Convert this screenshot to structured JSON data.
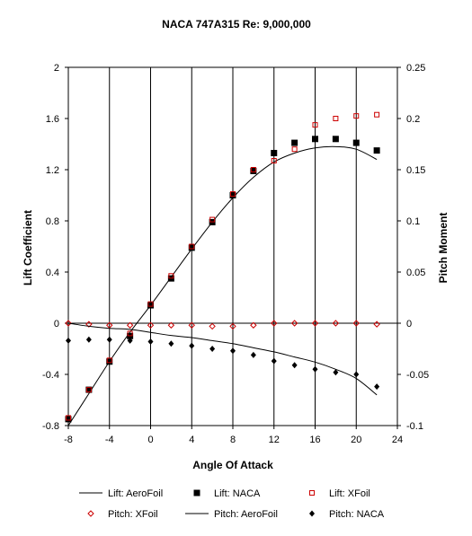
{
  "chart_data": {
    "type": "scatter",
    "title": "NACA 747A315 Re: 9,000,000",
    "xlabel": "Angle Of Attack",
    "ylabel": "Lift Coefficient",
    "y2label": "Pitch Moment",
    "xlim": [
      -8,
      24
    ],
    "ylim": [
      -0.8,
      2
    ],
    "y2lim": [
      -0.1,
      0.25
    ],
    "xticks": [
      "-8",
      "-4",
      "0",
      "4",
      "8",
      "12",
      "16",
      "20",
      "24"
    ],
    "yticks": [
      "-0.8",
      "-0.4",
      "0",
      "0.4",
      "0.8",
      "1.2",
      "1.6",
      "2"
    ],
    "y2ticks": [
      "-0.1",
      "-0.05",
      "0",
      "0.05",
      "0.1",
      "0.15",
      "0.2",
      "0.25"
    ],
    "grid": "vertical",
    "legend_position": "bottom",
    "series": [
      {
        "name": "Lift: AeroFoil",
        "axis": "left",
        "style": "line",
        "color": "#000000",
        "x": [
          -8,
          -6,
          -4,
          -2,
          0,
          2,
          4,
          6,
          8,
          10,
          12,
          14,
          16,
          18,
          20,
          22
        ],
        "y": [
          -0.8,
          -0.55,
          -0.3,
          -0.07,
          0.14,
          0.36,
          0.58,
          0.79,
          0.98,
          1.14,
          1.26,
          1.33,
          1.37,
          1.38,
          1.36,
          1.28
        ]
      },
      {
        "name": "Lift: NACA",
        "axis": "left",
        "style": "filled-square",
        "color": "#000000",
        "x": [
          -8,
          -6,
          -4,
          -2,
          0,
          2,
          4,
          6,
          8,
          10,
          12,
          14,
          16,
          18,
          20,
          22
        ],
        "y": [
          -0.75,
          -0.52,
          -0.3,
          -0.1,
          0.14,
          0.35,
          0.59,
          0.79,
          1.0,
          1.19,
          1.33,
          1.41,
          1.44,
          1.44,
          1.41,
          1.35
        ]
      },
      {
        "name": "Lift: XFoil",
        "axis": "left",
        "style": "open-square",
        "color": "#cc0000",
        "x": [
          -8,
          -6,
          -4,
          -2,
          0,
          2,
          4,
          6,
          8,
          10,
          12,
          14,
          16,
          18,
          20,
          22
        ],
        "y": [
          -0.74,
          -0.52,
          -0.29,
          -0.08,
          0.15,
          0.37,
          0.6,
          0.81,
          1.01,
          1.2,
          1.27,
          1.36,
          1.55,
          1.6,
          1.62,
          1.63
        ]
      },
      {
        "name": "Pitch: XFoil",
        "axis": "right",
        "style": "open-diamond",
        "color": "#cc0000",
        "x": [
          -8,
          -6,
          -4,
          -2,
          0,
          2,
          4,
          6,
          8,
          10,
          12,
          14,
          16,
          18,
          20,
          22
        ],
        "y": [
          0.0,
          -0.001,
          -0.002,
          -0.002,
          -0.002,
          -0.002,
          -0.002,
          -0.003,
          -0.003,
          -0.002,
          0.0,
          0.0,
          0.0,
          0.0,
          0.0,
          -0.001
        ]
      },
      {
        "name": "Pitch: AeroFoil",
        "axis": "right",
        "style": "line",
        "color": "#000000",
        "x": [
          -8,
          -6,
          -4,
          -2,
          0,
          2,
          4,
          6,
          8,
          10,
          12,
          14,
          16,
          18,
          20,
          22
        ],
        "y": [
          0.0,
          -0.003,
          -0.005,
          -0.006,
          -0.009,
          -0.012,
          -0.014,
          -0.017,
          -0.02,
          -0.024,
          -0.028,
          -0.033,
          -0.038,
          -0.045,
          -0.054,
          -0.07
        ]
      },
      {
        "name": "Pitch: NACA",
        "axis": "right",
        "style": "filled-diamond",
        "color": "#000000",
        "x": [
          -8,
          -6,
          -4,
          -2,
          0,
          2,
          4,
          6,
          8,
          10,
          12,
          14,
          16,
          18,
          20,
          22
        ],
        "y": [
          -0.017,
          -0.016,
          -0.016,
          -0.017,
          -0.018,
          -0.02,
          -0.022,
          -0.025,
          -0.027,
          -0.031,
          -0.037,
          -0.041,
          -0.045,
          -0.048,
          -0.05,
          -0.062
        ]
      }
    ]
  }
}
